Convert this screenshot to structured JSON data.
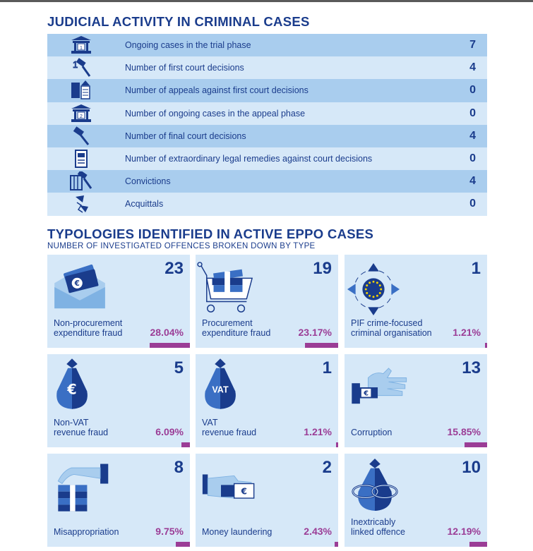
{
  "colors": {
    "accent_blue": "#1a3c8c",
    "accent_purple": "#9b3d96",
    "row_dark": "#a9cdee",
    "row_light": "#d6e8f8"
  },
  "judicial": {
    "title": "JUDICIAL ACTIVITY IN CRIMINAL CASES",
    "rows": [
      {
        "icon": "courthouse-1-icon",
        "label": "Ongoing cases in the trial phase",
        "value": "7"
      },
      {
        "icon": "gavel-1-icon",
        "label": "Number of first court decisions",
        "value": "4"
      },
      {
        "icon": "appeal-documents-icon",
        "label": "Number of appeals against first court decisions",
        "value": "0"
      },
      {
        "icon": "courthouse-2-icon",
        "label": "Number of ongoing cases in the appeal phase",
        "value": "0"
      },
      {
        "icon": "gavel-icon",
        "label": "Number of final court decisions",
        "value": "4"
      },
      {
        "icon": "document-stamp-icon",
        "label": "Number of extraordinary legal remedies against court decisions",
        "value": "0"
      },
      {
        "icon": "prison-gavel-icon",
        "label": "Convictions",
        "value": "4"
      },
      {
        "icon": "broken-gavel-icon",
        "label": "Acquittals",
        "value": "0"
      }
    ]
  },
  "typologies": {
    "title": "TYPOLOGIES IDENTIFIED IN ACTIVE EPPO CASES",
    "subtitle": "NUMBER OF INVESTIGATED OFFENCES BROKEN DOWN BY TYPE",
    "cards": [
      {
        "icon": "money-envelope-icon",
        "count": "23",
        "label_line1": "Non-procurement",
        "label_line2": "expenditure fraud",
        "percent": "28.04%",
        "share": 28.04
      },
      {
        "icon": "money-cart-icon",
        "count": "19",
        "label_line1": "Procurement",
        "label_line2": "expenditure fraud",
        "percent": "23.17%",
        "share": 23.17
      },
      {
        "icon": "eu-organisation-icon",
        "count": "1",
        "label_line1": "PIF crime-focused",
        "label_line2": "criminal organisation",
        "percent": "1.21%",
        "share": 1.21
      },
      {
        "icon": "euro-bag-icon",
        "count": "5",
        "label_line1": "Non-VAT",
        "label_line2": "revenue fraud",
        "percent": "6.09%",
        "share": 6.09,
        "bag_text": "€"
      },
      {
        "icon": "vat-bag-icon",
        "count": "1",
        "label_line1": "VAT",
        "label_line2": "revenue fraud",
        "percent": "1.21%",
        "share": 1.21,
        "bag_text": "VAT"
      },
      {
        "icon": "bribe-hand-icon",
        "count": "13",
        "label_line1": "",
        "label_line2": "Corruption",
        "percent": "15.85%",
        "share": 15.85
      },
      {
        "icon": "hand-money-icon",
        "count": "8",
        "label_line1": "",
        "label_line2": "Misappropriation",
        "percent": "9.75%",
        "share": 9.75
      },
      {
        "icon": "laundering-hand-icon",
        "count": "2",
        "label_line1": "",
        "label_line2": "Money laundering",
        "percent": "2.43%",
        "share": 2.43
      },
      {
        "icon": "linked-bag-icon",
        "count": "10",
        "label_line1": "Inextricably",
        "label_line2": "linked offence",
        "percent": "12.19%",
        "share": 12.19
      }
    ]
  }
}
